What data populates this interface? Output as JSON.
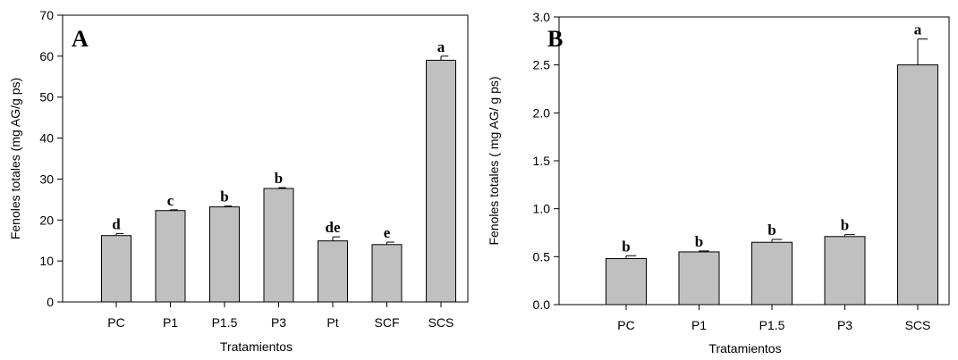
{
  "chart_data": [
    {
      "type": "bar",
      "panel_label": "A",
      "xlabel": "Tratamientos",
      "ylabel": "Fenoles totales (mg AG/g ps)",
      "ylim": [
        0,
        70
      ],
      "yticks": [
        "0",
        "10",
        "20",
        "30",
        "40",
        "50",
        "60",
        "70"
      ],
      "categories": [
        "PC",
        "P1",
        "P1.5",
        "P3",
        "Pt",
        "SCF",
        "SCS"
      ],
      "values": [
        16.2,
        22.3,
        23.2,
        27.7,
        14.9,
        14.0,
        59.0
      ],
      "errors": [
        0.5,
        0.2,
        0.2,
        0.2,
        1.0,
        0.6,
        1.0
      ],
      "significance": [
        "d",
        "c",
        "b",
        "b",
        "de",
        "e",
        "a"
      ],
      "grid": false,
      "bar_color": "#c0c0c0"
    },
    {
      "type": "bar",
      "panel_label": "B",
      "xlabel": "Tratamientos",
      "ylabel": "Fenoles totales ( mg AG/ g ps)",
      "ylim": [
        0,
        3.0
      ],
      "yticks": [
        "0.0",
        "0.5",
        "1.0",
        "1.5",
        "2.0",
        "2.5",
        "3.0"
      ],
      "categories": [
        "PC",
        "P1",
        "P1.5",
        "P3",
        "SCS"
      ],
      "values": [
        0.48,
        0.55,
        0.65,
        0.71,
        2.5
      ],
      "errors": [
        0.03,
        0.01,
        0.03,
        0.02,
        0.27
      ],
      "significance": [
        "b",
        "b",
        "b",
        "b",
        "a"
      ],
      "grid": false,
      "bar_color": "#c0c0c0"
    }
  ]
}
